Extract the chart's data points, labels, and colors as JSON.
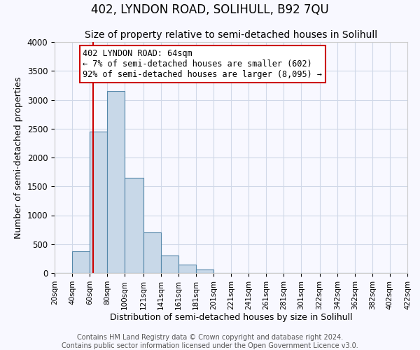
{
  "title": "402, LYNDON ROAD, SOLIHULL, B92 7QU",
  "subtitle": "Size of property relative to semi-detached houses in Solihull",
  "xlabel": "Distribution of semi-detached houses by size in Solihull",
  "ylabel": "Number of semi-detached properties",
  "bar_left_edges": [
    20,
    40,
    60,
    80,
    100,
    121,
    141,
    161,
    181,
    201,
    221,
    241,
    261,
    281,
    301,
    322,
    342,
    362,
    382,
    402
  ],
  "bar_heights": [
    0,
    375,
    2450,
    3150,
    1650,
    700,
    300,
    140,
    55,
    0,
    0,
    0,
    0,
    0,
    0,
    0,
    0,
    0,
    0,
    0
  ],
  "bar_color": "#c8d8e8",
  "bar_edge_color": "#5588aa",
  "bar_widths": [
    20,
    20,
    20,
    20,
    21,
    20,
    20,
    20,
    20,
    20,
    20,
    20,
    20,
    20,
    21,
    20,
    20,
    20,
    20,
    20
  ],
  "tick_labels": [
    "20sqm",
    "40sqm",
    "60sqm",
    "80sqm",
    "100sqm",
    "121sqm",
    "141sqm",
    "161sqm",
    "181sqm",
    "201sqm",
    "221sqm",
    "241sqm",
    "261sqm",
    "281sqm",
    "301sqm",
    "322sqm",
    "342sqm",
    "362sqm",
    "382sqm",
    "402sqm",
    "422sqm"
  ],
  "tick_positions": [
    20,
    40,
    60,
    80,
    100,
    121,
    141,
    161,
    181,
    201,
    221,
    241,
    261,
    281,
    301,
    322,
    342,
    362,
    382,
    402,
    422
  ],
  "ylim": [
    0,
    4000
  ],
  "xlim": [
    20,
    422
  ],
  "property_line_x": 64,
  "annotation_title": "402 LYNDON ROAD: 64sqm",
  "annotation_line1": "← 7% of semi-detached houses are smaller (602)",
  "annotation_line2": "92% of semi-detached houses are larger (8,095) →",
  "annotation_box_color": "#cc0000",
  "grid_color": "#d0d8e8",
  "background_color": "#f8f8ff",
  "footer_line1": "Contains HM Land Registry data © Crown copyright and database right 2024.",
  "footer_line2": "Contains public sector information licensed under the Open Government Licence v3.0.",
  "title_fontsize": 12,
  "subtitle_fontsize": 10,
  "axis_label_fontsize": 9,
  "tick_fontsize": 7.5,
  "annotation_fontsize": 8.5,
  "footer_fontsize": 7,
  "yticks": [
    0,
    500,
    1000,
    1500,
    2000,
    2500,
    3000,
    3500,
    4000
  ]
}
